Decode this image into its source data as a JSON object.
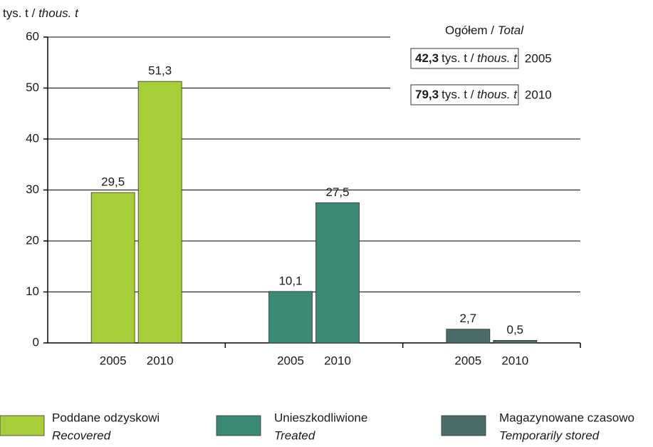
{
  "chart_data": {
    "type": "bar",
    "y_label": [
      "tys. t / ",
      "thous. t"
    ],
    "categories": [
      "2005",
      "2010"
    ],
    "series": [
      {
        "name": "Poddane odzyskowi",
        "name_en": "Recovered",
        "color": "#a6ce39",
        "values": [
          29.5,
          51.3
        ],
        "value_labels": [
          "29,5",
          "51,3"
        ]
      },
      {
        "name": "Unieszkodliwione",
        "name_en": "Treated",
        "color": "#3a8a76",
        "values": [
          10.1,
          27.5
        ],
        "value_labels": [
          "10,1",
          "27,5"
        ]
      },
      {
        "name": "Magazynowane czasowo",
        "name_en": "Temporarily stored",
        "color": "#4a6b6a",
        "values": [
          2.7,
          0.5
        ],
        "value_labels": [
          "2,7",
          "0,5"
        ]
      }
    ],
    "ylim": [
      0,
      60
    ],
    "yticks": [
      0,
      10,
      20,
      30,
      40,
      50,
      60
    ],
    "grid": true,
    "totals_title": [
      "Ogółem / ",
      "Total"
    ],
    "totals": [
      {
        "value": 42.3,
        "label": "42,3",
        "unit": [
          "tys. t / ",
          "thous. t"
        ]
      },
      {
        "value": 79.3,
        "label": "79,3",
        "unit": [
          "tys. t / ",
          "thous. t"
        ]
      }
    ]
  }
}
